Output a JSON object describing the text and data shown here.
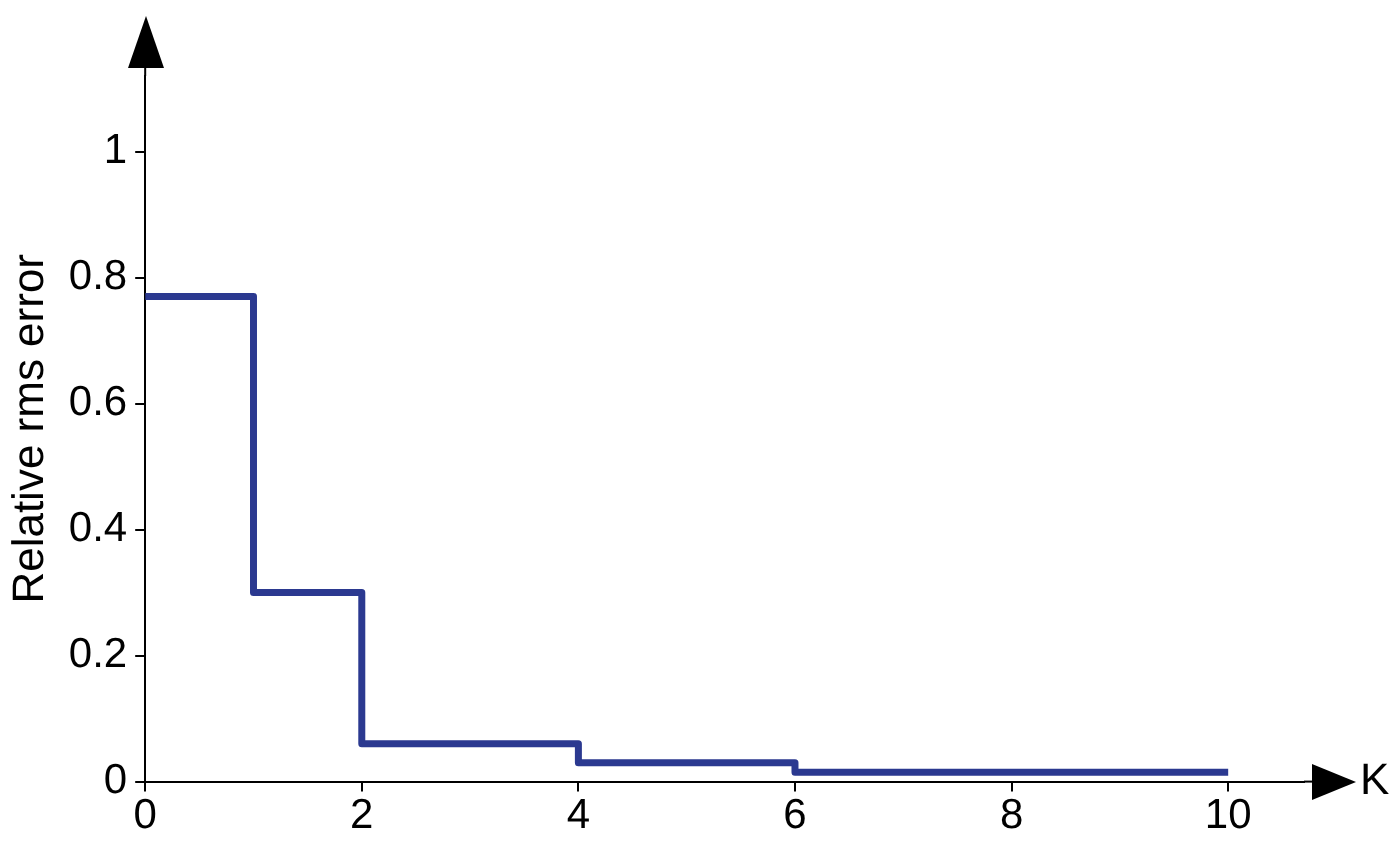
{
  "chart_data": {
    "type": "step",
    "xlabel": "K",
    "ylabel": "Relative rms error",
    "x": [
      0,
      1,
      2,
      4,
      6,
      10
    ],
    "series": [
      {
        "color": "#2b3990",
        "values": [
          0.77,
          0.3,
          0.06,
          0.03,
          0.015,
          0.015
        ]
      }
    ],
    "xlim": [
      0,
      10.7
    ],
    "xticks": [
      0,
      2,
      4,
      6,
      8,
      10
    ],
    "ylim": [
      0,
      1.12
    ],
    "yticks": [
      0,
      {
        "value": 0.2,
        "label": "0.2"
      },
      {
        "value": 0.4,
        "label": "0.4"
      },
      {
        "value": 0.6,
        "label": "0.6"
      },
      {
        "value": 0.8,
        "label": "0.8"
      },
      1
    ],
    "grid": false,
    "legend": false,
    "marker": "none",
    "line_style": "solid"
  }
}
